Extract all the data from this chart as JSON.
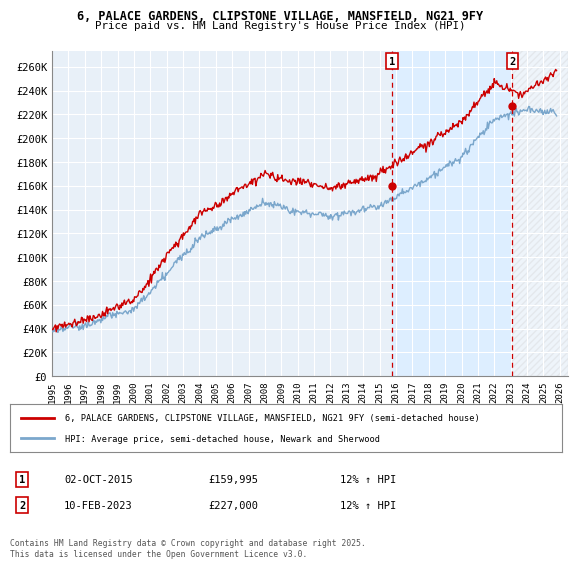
{
  "title_line1": "6, PALACE GARDENS, CLIPSTONE VILLAGE, MANSFIELD, NG21 9FY",
  "title_line2": "Price paid vs. HM Land Registry's House Price Index (HPI)",
  "xlim_start": 1995.0,
  "xlim_end": 2026.5,
  "ylim_min": 0,
  "ylim_max": 273000,
  "yticks": [
    0,
    20000,
    40000,
    60000,
    80000,
    100000,
    120000,
    140000,
    160000,
    180000,
    200000,
    220000,
    240000,
    260000
  ],
  "ytick_labels": [
    "£0",
    "£20K",
    "£40K",
    "£60K",
    "£80K",
    "£100K",
    "£120K",
    "£140K",
    "£160K",
    "£180K",
    "£200K",
    "£220K",
    "£240K",
    "£260K"
  ],
  "xticks": [
    1995,
    1996,
    1997,
    1998,
    1999,
    2000,
    2001,
    2002,
    2003,
    2004,
    2005,
    2006,
    2007,
    2008,
    2009,
    2010,
    2011,
    2012,
    2013,
    2014,
    2015,
    2016,
    2017,
    2018,
    2019,
    2020,
    2021,
    2022,
    2023,
    2024,
    2025,
    2026
  ],
  "sale1_x": 2015.75,
  "sale1_y": 159995,
  "sale1_label": "1",
  "sale1_date": "02-OCT-2015",
  "sale1_price": "£159,995",
  "sale1_hpi": "12% ↑ HPI",
  "sale2_x": 2023.1,
  "sale2_y": 227000,
  "sale2_label": "2",
  "sale2_date": "10-FEB-2023",
  "sale2_price": "£227,000",
  "sale2_hpi": "12% ↑ HPI",
  "line_red_color": "#cc0000",
  "line_blue_color": "#7ba7cc",
  "shade_color": "#ddeeff",
  "background_color": "#e8f0f8",
  "grid_color": "#ffffff",
  "legend_label_red": "6, PALACE GARDENS, CLIPSTONE VILLAGE, MANSFIELD, NG21 9FY (semi-detached house)",
  "legend_label_blue": "HPI: Average price, semi-detached house, Newark and Sherwood",
  "footnote": "Contains HM Land Registry data © Crown copyright and database right 2025.\nThis data is licensed under the Open Government Licence v3.0."
}
